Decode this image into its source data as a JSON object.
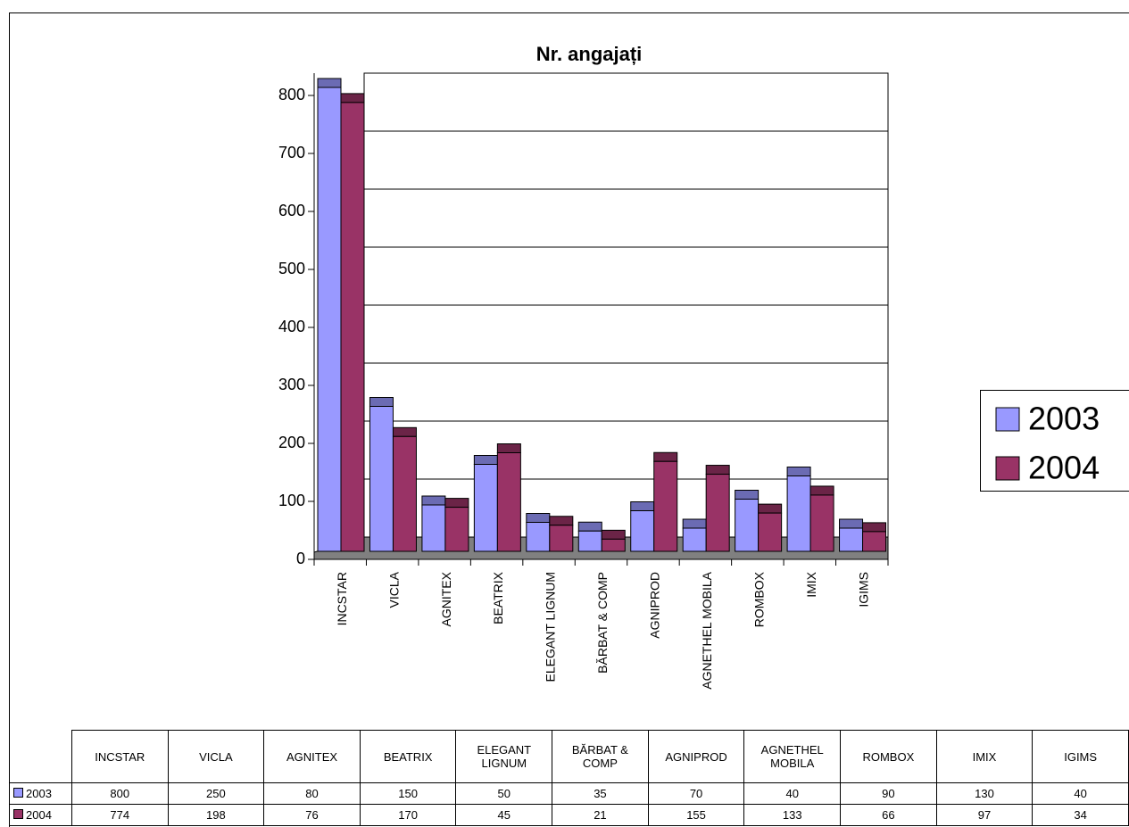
{
  "chart_data": {
    "type": "bar3d",
    "title": "Nr. angajați",
    "categories": [
      "INCSTAR",
      "VICLA",
      "AGNITEX",
      "BEATRIX",
      "ELEGANT LIGNUM",
      "BĂRBAT & COMP",
      "AGNIPROD",
      "AGNETHEL MOBILA",
      "ROMBOX",
      "IMIX",
      "IGIMS"
    ],
    "series": [
      {
        "name": "2003",
        "color": "#9999ff",
        "values": [
          800,
          250,
          80,
          150,
          50,
          35,
          70,
          40,
          90,
          130,
          40
        ]
      },
      {
        "name": "2004",
        "color": "#993366",
        "values": [
          774,
          198,
          76,
          170,
          45,
          21,
          155,
          133,
          66,
          97,
          34
        ]
      }
    ],
    "ylim": [
      0,
      800
    ],
    "yticks": [
      0,
      100,
      200,
      300,
      400,
      500,
      600,
      700,
      800
    ],
    "grid": true,
    "legend": "right",
    "data_table": true
  }
}
